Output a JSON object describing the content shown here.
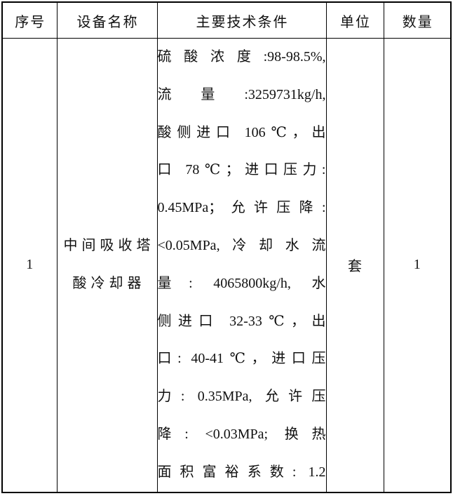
{
  "table": {
    "border_color": "#000000",
    "text_color": "#111111",
    "headers": {
      "serial": "序号",
      "equipment_name": "设备名称",
      "tech_conditions": "主要技术条件",
      "unit": "单位",
      "quantity": "数量"
    },
    "row": {
      "serial": "1",
      "name_lines": [
        "中间吸收塔",
        "酸冷却器"
      ],
      "tech_lines": [
        "硫酸浓度:98-98.5%,",
        "流量:3259731kg/h,",
        "酸侧进口 106℃，出",
        "口 78℃；进口压力:",
        "0.45MPa；允许压降:",
        "<0.05MPa,冷却水流",
        "量: 4065800kg/h, 水",
        "侧进口 32-33℃，出",
        "口: 40-41℃，进口压",
        "力: 0.35MPa, 允许压",
        "降: <0.03MPa; 换热",
        "面积富裕系数: 1.2"
      ],
      "unit": "套",
      "quantity": "1"
    }
  }
}
